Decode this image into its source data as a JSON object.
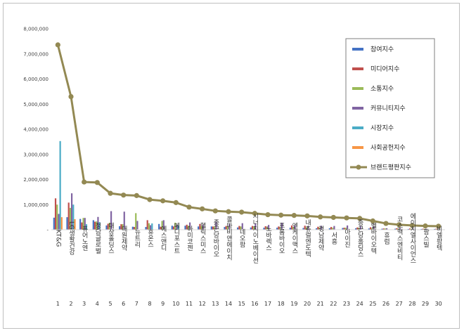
{
  "chart_data": {
    "type": "bar+line",
    "ylim": [
      0,
      8000000
    ],
    "yticks": [
      "8,000,000",
      "7,000,000",
      "6,000,000",
      "5,000,000",
      "4,000,000",
      "3,000,000",
      "2,000,000",
      "1,000,000",
      "-"
    ],
    "index": [
      "1",
      "2",
      "3",
      "4",
      "5",
      "6",
      "7",
      "8",
      "9",
      "10",
      "11",
      "12",
      "13",
      "14",
      "15",
      "16",
      "17",
      "18",
      "19",
      "20",
      "21",
      "22",
      "23",
      "24",
      "25",
      "26",
      "27",
      "28",
      "29",
      "30"
    ],
    "categories": [
      "KT&G",
      "LG생활건강",
      "퓨어노엔",
      "청담글로벌",
      "대상홀딩스",
      "대원제약",
      "뉴트리",
      "휴온스",
      "에스앤디",
      "메디포스트",
      "아미코젠",
      "헬릭스미스",
      "종근당바이오",
      "콜마비앤에이치",
      "네오팜",
      "시너지이노베이션",
      "노바렉스",
      "프롬바이오",
      "엔케이맥스",
      "내츄럴엔도텍",
      "경남제약",
      "서흥",
      "아이진",
      "종근당홀딩스",
      "벨바이오텍",
      "휴럼",
      "코스맥스엔비티",
      "에이치엘사이언스",
      "팜스빌",
      "비엘팜텍"
    ],
    "legend_position": "right",
    "series": [
      {
        "name": "참여지수",
        "color": "#4472c4",
        "kind": "bar",
        "values": [
          480000,
          500000,
          430000,
          380000,
          170000,
          140000,
          120000,
          110000,
          230000,
          160000,
          160000,
          130000,
          130000,
          110000,
          90000,
          90000,
          80000,
          80000,
          80000,
          70000,
          60000,
          60000,
          70000,
          60000,
          50000,
          40000,
          40000,
          30000,
          30000,
          30000
        ]
      },
      {
        "name": "미디어지수",
        "color": "#c0504d",
        "kind": "bar",
        "values": [
          1250000,
          1080000,
          290000,
          320000,
          240000,
          220000,
          110000,
          380000,
          120000,
          130000,
          200000,
          230000,
          130000,
          150000,
          150000,
          150000,
          140000,
          130000,
          170000,
          160000,
          120000,
          110000,
          80000,
          90000,
          100000,
          50000,
          60000,
          50000,
          40000,
          40000
        ]
      },
      {
        "name": "소통지수",
        "color": "#9bbb59",
        "kind": "bar",
        "values": [
          1000000,
          870000,
          470000,
          330000,
          280000,
          220000,
          660000,
          260000,
          350000,
          280000,
          160000,
          150000,
          130000,
          140000,
          130000,
          120000,
          100000,
          100000,
          110000,
          100000,
          90000,
          80000,
          80000,
          80000,
          70000,
          50000,
          50000,
          40000,
          30000,
          30000
        ]
      },
      {
        "name": "커뮤니티지수",
        "color": "#8064a2",
        "kind": "bar",
        "values": [
          630000,
          1450000,
          470000,
          510000,
          740000,
          720000,
          350000,
          180000,
          380000,
          190000,
          290000,
          190000,
          320000,
          220000,
          260000,
          240000,
          190000,
          280000,
          170000,
          150000,
          160000,
          150000,
          170000,
          150000,
          140000,
          60000,
          80000,
          60000,
          40000,
          40000
        ]
      },
      {
        "name": "시장지수",
        "color": "#4bacc6",
        "kind": "bar",
        "values": [
          3530000,
          1000000,
          220000,
          300000,
          0,
          0,
          0,
          250000,
          0,
          170000,
          0,
          0,
          0,
          0,
          0,
          0,
          0,
          0,
          0,
          0,
          0,
          0,
          0,
          0,
          0,
          0,
          0,
          0,
          0,
          0
        ]
      },
      {
        "name": "사회공헌지수",
        "color": "#f79646",
        "kind": "bar",
        "values": [
          500000,
          420000,
          0,
          0,
          0,
          0,
          0,
          0,
          0,
          0,
          0,
          0,
          0,
          0,
          0,
          0,
          0,
          0,
          0,
          0,
          0,
          0,
          0,
          0,
          0,
          0,
          0,
          0,
          0,
          0
        ]
      },
      {
        "name": "브랜드평판지수",
        "color": "#938953",
        "kind": "line",
        "values": [
          7360000,
          5300000,
          1900000,
          1880000,
          1450000,
          1380000,
          1360000,
          1200000,
          1150000,
          1080000,
          900000,
          830000,
          750000,
          720000,
          700000,
          650000,
          600000,
          580000,
          570000,
          550000,
          510000,
          490000,
          470000,
          450000,
          350000,
          250000,
          200000,
          170000,
          150000,
          140000
        ]
      }
    ]
  }
}
